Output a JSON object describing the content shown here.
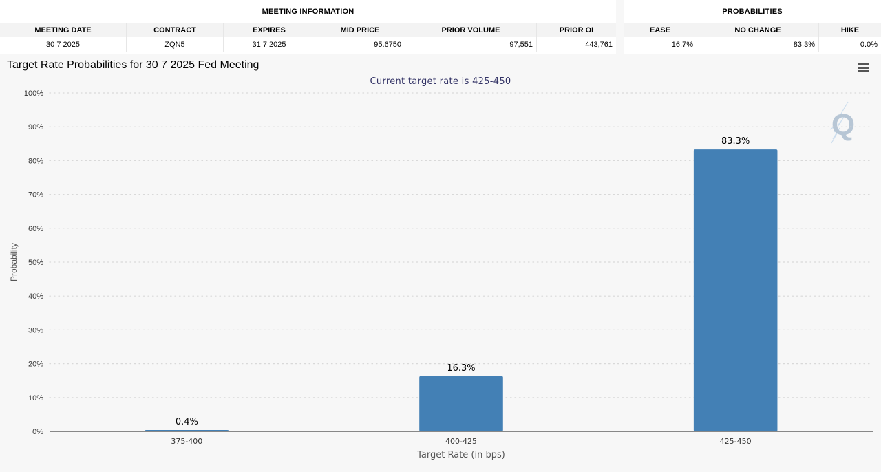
{
  "meeting_info": {
    "title": "MEETING INFORMATION",
    "columns": [
      "MEETING DATE",
      "CONTRACT",
      "EXPIRES",
      "MID PRICE",
      "PRIOR VOLUME",
      "PRIOR OI"
    ],
    "values": [
      "30 7 2025",
      "ZQN5",
      "31 7 2025",
      "95.6750",
      "97,551",
      "443,761"
    ]
  },
  "probabilities": {
    "title": "PROBABILITIES",
    "columns": [
      "EASE",
      "NO CHANGE",
      "HIKE"
    ],
    "values": [
      "16.7%",
      "83.3%",
      "0.0%"
    ]
  },
  "menu": {
    "icon": "hamburger-menu-icon"
  },
  "watermark": {
    "icon": "quikstrike-q-logo",
    "letter": "Q"
  },
  "colors": {
    "bar": "#4380b5",
    "grid": "#d8d8d8",
    "axis": "#888888",
    "subtitle": "#333366"
  },
  "chart_data": {
    "type": "bar",
    "title": "Target Rate Probabilities for 30 7 2025 Fed Meeting",
    "subtitle": "Current target rate is 425-450",
    "xlabel": "Target Rate (in bps)",
    "ylabel": "Probability",
    "categories": [
      "375-400",
      "400-425",
      "425-450"
    ],
    "values": [
      0.4,
      16.3,
      83.3
    ],
    "data_labels": [
      "0.4%",
      "16.3%",
      "83.3%"
    ],
    "ylim": [
      0,
      100
    ],
    "yticks": [
      0,
      10,
      20,
      30,
      40,
      50,
      60,
      70,
      80,
      90,
      100
    ],
    "ytick_labels": [
      "0%",
      "10%",
      "20%",
      "30%",
      "40%",
      "50%",
      "60%",
      "70%",
      "80%",
      "90%",
      "100%"
    ],
    "grid": true,
    "legend": "none"
  }
}
